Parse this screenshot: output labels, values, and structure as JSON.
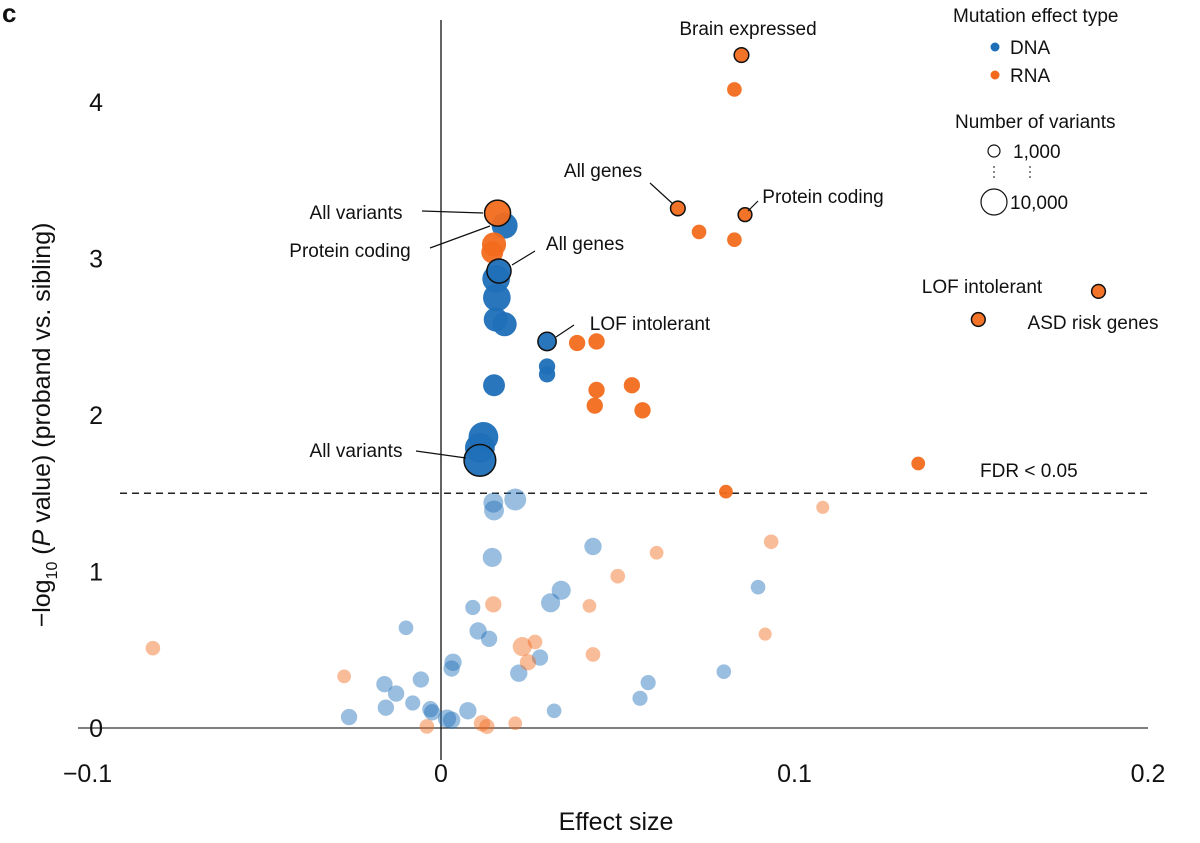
{
  "chart_data": {
    "type": "scatter",
    "panel_label": "c",
    "xlabel": "Effect size",
    "ylabel": {
      "prefix": "−log",
      "sub": "10",
      "open": " (",
      "italic": "P",
      "rest": " value) (proband vs. sibling)"
    },
    "xlim": [
      -0.1,
      0.2
    ],
    "ylim": [
      0,
      4.4
    ],
    "xticks": [
      {
        "v": -0.1,
        "label": "−0.1"
      },
      {
        "v": 0,
        "label": "0"
      },
      {
        "v": 0.1,
        "label": "0.1"
      },
      {
        "v": 0.2,
        "label": "0.2"
      }
    ],
    "yticks": [
      {
        "v": 0,
        "label": "0"
      },
      {
        "v": 1,
        "label": "1"
      },
      {
        "v": 2,
        "label": "2"
      },
      {
        "v": 3,
        "label": "3"
      },
      {
        "v": 4,
        "label": "4"
      }
    ],
    "grid": false,
    "threshold": {
      "y": 1.5,
      "label": "FDR < 0.05"
    },
    "colors": {
      "DNA": "#1f6fb8",
      "RNA": "#f26b1d"
    },
    "legend": {
      "placement": "top-right",
      "type_title": "Mutation effect type",
      "types": [
        "DNA",
        "RNA"
      ],
      "size_title": "Number of variants",
      "sizes": [
        {
          "n": 1000,
          "label": "1,000"
        },
        {
          "n": 10000,
          "label": "10,000"
        }
      ]
    },
    "series": [
      {
        "name": "DNA",
        "points": [
          {
            "x": 0.018,
            "y": 3.21,
            "n": 10000
          },
          {
            "x": 0.0164,
            "y": 2.92,
            "n": 8000,
            "outlined": true,
            "label": "All genes"
          },
          {
            "x": 0.0156,
            "y": 2.87,
            "n": 12000
          },
          {
            "x": 0.0158,
            "y": 2.75,
            "n": 12000
          },
          {
            "x": 0.0155,
            "y": 2.61,
            "n": 8000
          },
          {
            "x": 0.018,
            "y": 2.58,
            "n": 8000
          },
          {
            "x": 0.03,
            "y": 2.47,
            "n": 3500,
            "outlined": true,
            "label": "LOF intolerant"
          },
          {
            "x": 0.03,
            "y": 2.31,
            "n": 2500
          },
          {
            "x": 0.03,
            "y": 2.26,
            "n": 2500
          },
          {
            "x": 0.015,
            "y": 2.19,
            "n": 6000
          },
          {
            "x": 0.012,
            "y": 1.86,
            "n": 15000
          },
          {
            "x": 0.011,
            "y": 1.79,
            "n": 15000
          },
          {
            "x": 0.011,
            "y": 1.71,
            "n": 18000,
            "outlined": true,
            "label": "All variants"
          },
          {
            "x": 0.0148,
            "y": 1.44,
            "n": 4500
          },
          {
            "x": 0.015,
            "y": 1.39,
            "n": 4500
          },
          {
            "x": 0.021,
            "y": 1.46,
            "n": 6000
          },
          {
            "x": 0.0145,
            "y": 1.09,
            "n": 4000
          },
          {
            "x": 0.043,
            "y": 1.16,
            "n": 3000
          },
          {
            "x": 0.034,
            "y": 0.88,
            "n": 4000
          },
          {
            "x": 0.031,
            "y": 0.8,
            "n": 4000
          },
          {
            "x": 0.009,
            "y": 0.77,
            "n": 2000
          },
          {
            "x": -0.0099,
            "y": 0.64,
            "n": 1800
          },
          {
            "x": 0.0105,
            "y": 0.62,
            "n": 3000
          },
          {
            "x": 0.0136,
            "y": 0.57,
            "n": 2500
          },
          {
            "x": 0.0034,
            "y": 0.42,
            "n": 3000
          },
          {
            "x": 0.003,
            "y": 0.38,
            "n": 2500
          },
          {
            "x": 0.028,
            "y": 0.45,
            "n": 2500
          },
          {
            "x": 0.022,
            "y": 0.35,
            "n": 3000
          },
          {
            "x": -0.0057,
            "y": 0.31,
            "n": 2500
          },
          {
            "x": -0.016,
            "y": 0.28,
            "n": 2500
          },
          {
            "x": -0.0127,
            "y": 0.22,
            "n": 2500
          },
          {
            "x": -0.008,
            "y": 0.16,
            "n": 2000
          },
          {
            "x": -0.0156,
            "y": 0.13,
            "n": 2500
          },
          {
            "x": -0.026,
            "y": 0.07,
            "n": 2500
          },
          {
            "x": -0.003,
            "y": 0.12,
            "n": 2500
          },
          {
            "x": -0.0025,
            "y": 0.1,
            "n": 2500
          },
          {
            "x": 0.0017,
            "y": 0.06,
            "n": 3500
          },
          {
            "x": 0.003,
            "y": 0.05,
            "n": 3000
          },
          {
            "x": 0.0076,
            "y": 0.11,
            "n": 3000
          },
          {
            "x": 0.032,
            "y": 0.11,
            "n": 1800
          },
          {
            "x": 0.0586,
            "y": 0.29,
            "n": 2000
          },
          {
            "x": 0.0563,
            "y": 0.19,
            "n": 2000
          },
          {
            "x": 0.08,
            "y": 0.36,
            "n": 1800
          },
          {
            "x": 0.0897,
            "y": 0.9,
            "n": 1800
          }
        ]
      },
      {
        "name": "RNA",
        "points": [
          {
            "x": 0.085,
            "y": 4.3,
            "n": 1800,
            "outlined": true,
            "label": "Brain expressed"
          },
          {
            "x": 0.083,
            "y": 4.08,
            "n": 1800
          },
          {
            "x": 0.067,
            "y": 3.32,
            "n": 1800,
            "outlined": true,
            "label": "All genes"
          },
          {
            "x": 0.086,
            "y": 3.28,
            "n": 1500,
            "outlined": true,
            "label": "Protein coding"
          },
          {
            "x": 0.073,
            "y": 3.17,
            "n": 1800
          },
          {
            "x": 0.083,
            "y": 3.12,
            "n": 1800
          },
          {
            "x": 0.186,
            "y": 2.79,
            "n": 1500,
            "outlined": true,
            "label": "LOF intolerant"
          },
          {
            "x": 0.152,
            "y": 2.61,
            "n": 1500,
            "outlined": true,
            "label": "ASD risk genes"
          },
          {
            "x": 0.016,
            "y": 3.29,
            "n": 10000,
            "outlined": true,
            "label": "All variants"
          },
          {
            "x": 0.015,
            "y": 3.09,
            "n": 8000,
            "label": "Protein coding"
          },
          {
            "x": 0.0145,
            "y": 3.04,
            "n": 6000
          },
          {
            "x": 0.0385,
            "y": 2.46,
            "n": 2500
          },
          {
            "x": 0.044,
            "y": 2.47,
            "n": 2500
          },
          {
            "x": 0.044,
            "y": 2.16,
            "n": 2500
          },
          {
            "x": 0.0435,
            "y": 2.06,
            "n": 2500
          },
          {
            "x": 0.054,
            "y": 2.19,
            "n": 2500
          },
          {
            "x": 0.057,
            "y": 2.03,
            "n": 2500
          },
          {
            "x": 0.135,
            "y": 1.69,
            "n": 1500
          },
          {
            "x": 0.0806,
            "y": 1.51,
            "n": 1500
          },
          {
            "x": -0.0274,
            "y": 0.33,
            "n": 1500
          },
          {
            "x": 0.0148,
            "y": 0.79,
            "n": 2500
          },
          {
            "x": 0.042,
            "y": 0.78,
            "n": 1500
          },
          {
            "x": 0.023,
            "y": 0.52,
            "n": 4000
          },
          {
            "x": 0.0266,
            "y": 0.55,
            "n": 1800
          },
          {
            "x": 0.043,
            "y": 0.47,
            "n": 1800
          },
          {
            "x": 0.0246,
            "y": 0.42,
            "n": 2500
          },
          {
            "x": -0.004,
            "y": 0.01,
            "n": 1800
          },
          {
            "x": 0.0116,
            "y": 0.03,
            "n": 2500
          },
          {
            "x": 0.013,
            "y": 0.01,
            "n": 2000
          },
          {
            "x": 0.021,
            "y": 0.03,
            "n": 1500
          },
          {
            "x": -0.0815,
            "y": 0.51,
            "n": 1800
          },
          {
            "x": 0.05,
            "y": 0.97,
            "n": 1800
          },
          {
            "x": 0.061,
            "y": 1.12,
            "n": 1500
          },
          {
            "x": 0.0934,
            "y": 1.19,
            "n": 1800
          },
          {
            "x": 0.108,
            "y": 1.41,
            "n": 1300
          },
          {
            "x": 0.0917,
            "y": 0.6,
            "n": 1300
          }
        ]
      }
    ]
  }
}
